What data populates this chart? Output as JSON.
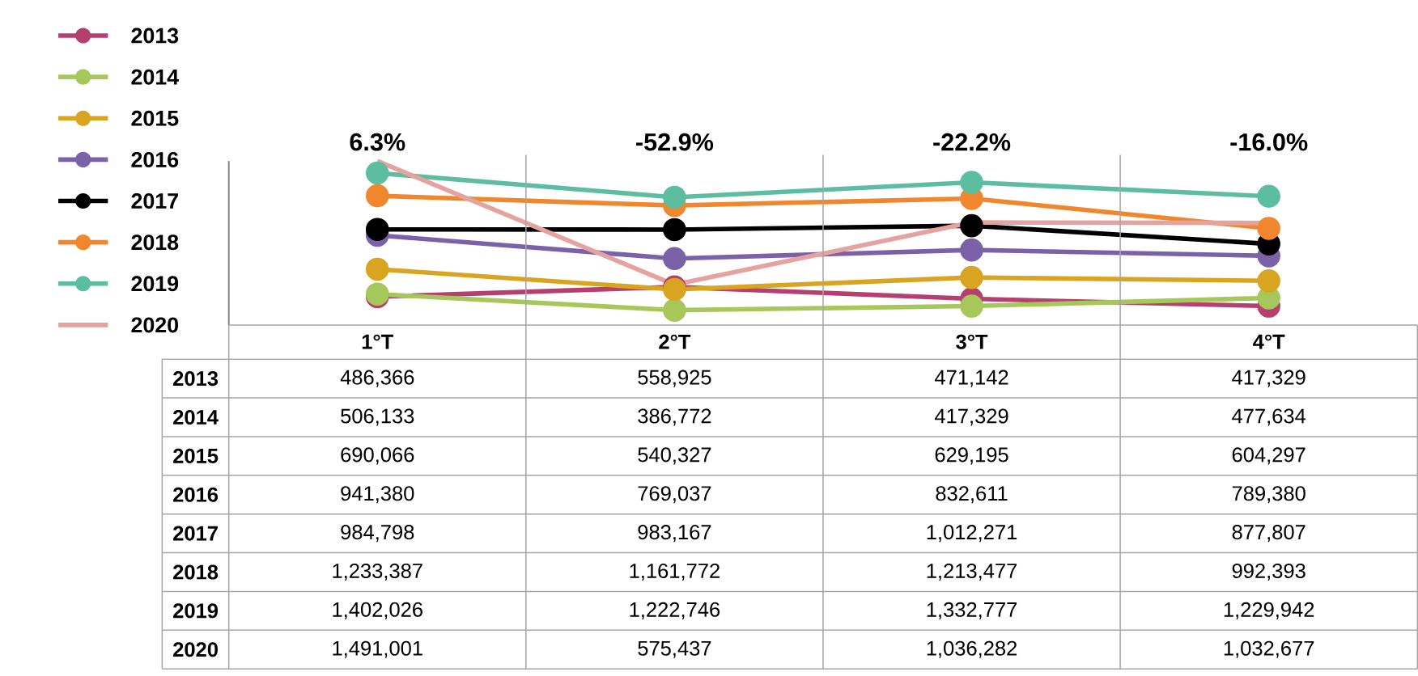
{
  "chart_data": {
    "type": "line",
    "categories": [
      "1°T",
      "2°T",
      "3°T",
      "4°T"
    ],
    "series": [
      {
        "name": "2013",
        "color": "#b5406f",
        "values": [
          486366,
          558925,
          471142,
          417329
        ],
        "value_labels": [
          "486,366",
          "558,925",
          "471,142",
          "417,329"
        ]
      },
      {
        "name": "2014",
        "color": "#a6c85a",
        "values": [
          506133,
          386772,
          417329,
          477634
        ],
        "value_labels": [
          "506,133",
          "386,772",
          "417,329",
          "477,634"
        ]
      },
      {
        "name": "2015",
        "color": "#d9a521",
        "values": [
          690066,
          540327,
          629195,
          604297
        ],
        "value_labels": [
          "690,066",
          "540,327",
          "629,195",
          "604,297"
        ]
      },
      {
        "name": "2016",
        "color": "#7b62a8",
        "values": [
          941380,
          769037,
          832611,
          789380
        ],
        "value_labels": [
          "941,380",
          "769,037",
          "832,611",
          "789,380"
        ]
      },
      {
        "name": "2017",
        "color": "#000000",
        "values": [
          984798,
          983167,
          1012271,
          877807
        ],
        "value_labels": [
          "984,798",
          "983,167",
          "1,012,271",
          "877,807"
        ]
      },
      {
        "name": "2018",
        "color": "#f0872f",
        "values": [
          1233387,
          1161772,
          1213477,
          992393
        ],
        "value_labels": [
          "1,233,387",
          "1,161,772",
          "1,213,477",
          "992,393"
        ]
      },
      {
        "name": "2019",
        "color": "#5dbda0",
        "values": [
          1402026,
          1222746,
          1332777,
          1229942
        ],
        "value_labels": [
          "1,402,026",
          "1,222,746",
          "1,332,777",
          "1,229,942"
        ]
      },
      {
        "name": "2020",
        "color": "#e5a3a0",
        "marker": "none",
        "values": [
          1491001,
          575437,
          1036282,
          1032677
        ],
        "value_labels": [
          "1,491,001",
          "575,437",
          "1,036,282",
          "1,032,677"
        ]
      }
    ],
    "annotations": [
      "6.3%",
      "-52.9%",
      "-22.2%",
      "-16.0%"
    ],
    "marker": "circle",
    "legend": "left"
  }
}
